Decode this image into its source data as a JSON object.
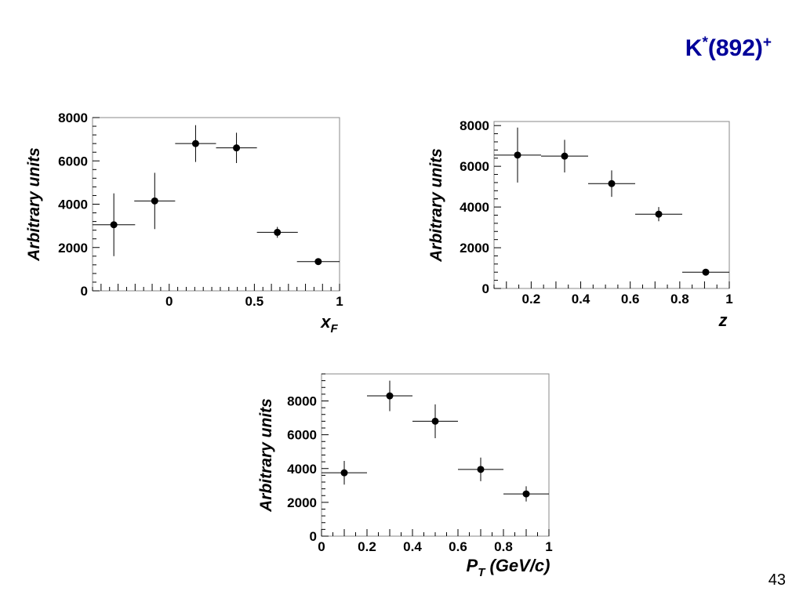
{
  "slide": {
    "title_main": "K",
    "title_sup1": "*",
    "title_mid": "(892)",
    "title_sup2": "+",
    "page_number": "43"
  },
  "chart_data": [
    {
      "id": "xf",
      "type": "scatter",
      "xlabel": "x",
      "xlabel_sub": "F",
      "ylabel": "Arbitrary units",
      "xlim": [
        -0.45,
        1.0
      ],
      "ylim": [
        0,
        8000
      ],
      "xticks": [
        0,
        0.5,
        1
      ],
      "xtick_labels": [
        "0",
        "0.5",
        "1"
      ],
      "yticks": [
        0,
        2000,
        4000,
        6000,
        8000
      ],
      "ytick_labels": [
        "0",
        "2000",
        "4000",
        "6000",
        "8000"
      ],
      "points": [
        {
          "x": -0.325,
          "y": 3050,
          "xerr": 0.125,
          "yerr": 1450
        },
        {
          "x": -0.085,
          "y": 4150,
          "xerr": 0.12,
          "yerr": 1300
        },
        {
          "x": 0.155,
          "y": 6800,
          "xerr": 0.12,
          "yerr": 850
        },
        {
          "x": 0.395,
          "y": 6600,
          "xerr": 0.12,
          "yerr": 700
        },
        {
          "x": 0.635,
          "y": 2700,
          "xerr": 0.12,
          "yerr": 250
        },
        {
          "x": 0.875,
          "y": 1350,
          "xerr": 0.125,
          "yerr": 150
        }
      ]
    },
    {
      "id": "z",
      "type": "scatter",
      "xlabel": "z",
      "xlabel_sub": "",
      "ylabel": "Arbitrary units",
      "xlim": [
        0.05,
        1.0
      ],
      "ylim": [
        0,
        8200
      ],
      "xticks": [
        0.2,
        0.4,
        0.6,
        0.8,
        1
      ],
      "xtick_labels": [
        "0.2",
        "0.4",
        "0.6",
        "0.8",
        "1"
      ],
      "yticks": [
        0,
        2000,
        4000,
        6000,
        8000
      ],
      "ytick_labels": [
        "0",
        "2000",
        "4000",
        "6000",
        "8000"
      ],
      "points": [
        {
          "x": 0.145,
          "y": 6550,
          "xerr": 0.095,
          "yerr": 1350
        },
        {
          "x": 0.335,
          "y": 6500,
          "xerr": 0.095,
          "yerr": 800
        },
        {
          "x": 0.525,
          "y": 5150,
          "xerr": 0.095,
          "yerr": 650
        },
        {
          "x": 0.715,
          "y": 3650,
          "xerr": 0.095,
          "yerr": 350
        },
        {
          "x": 0.905,
          "y": 800,
          "xerr": 0.095,
          "yerr": 120
        }
      ]
    },
    {
      "id": "pt",
      "type": "scatter",
      "xlabel": "P",
      "xlabel_sub": "T",
      "xlabel_suffix": " (GeV/c)",
      "ylabel": "Arbitrary units",
      "xlim": [
        0,
        1.0
      ],
      "ylim": [
        0,
        9600
      ],
      "xticks": [
        0,
        0.2,
        0.4,
        0.6,
        0.8,
        1
      ],
      "xtick_labels": [
        "0",
        "0.2",
        "0.4",
        "0.6",
        "0.8",
        "1"
      ],
      "yticks": [
        0,
        2000,
        4000,
        6000,
        8000
      ],
      "ytick_labels": [
        "0",
        "2000",
        "4000",
        "6000",
        "8000"
      ],
      "points": [
        {
          "x": 0.1,
          "y": 3750,
          "xerr": 0.1,
          "yerr": 700
        },
        {
          "x": 0.3,
          "y": 8300,
          "xerr": 0.1,
          "yerr": 900
        },
        {
          "x": 0.5,
          "y": 6800,
          "xerr": 0.1,
          "yerr": 1000
        },
        {
          "x": 0.7,
          "y": 3950,
          "xerr": 0.1,
          "yerr": 700
        },
        {
          "x": 0.9,
          "y": 2500,
          "xerr": 0.1,
          "yerr": 450
        }
      ]
    }
  ]
}
